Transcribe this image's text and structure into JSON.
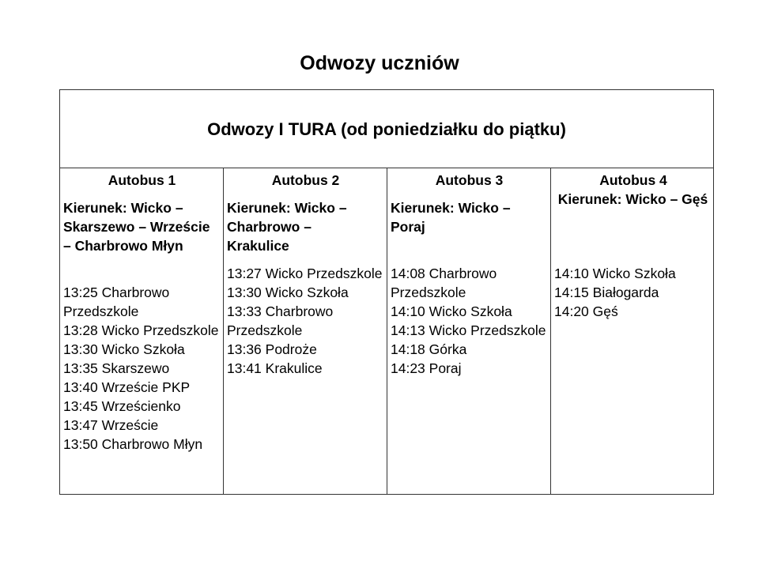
{
  "title": "Odwozy uczniów",
  "table": {
    "header": "Odwozy I TURA (od poniedziałku do piątku)",
    "buses": [
      {
        "name": "Autobus 1",
        "direction": "Kierunek: Wicko – Skarszewo – Wrzeście – Charbrowo Młyn",
        "stops": [
          "13:25 Charbrowo Przedszkole",
          "13:28 Wicko Przedszkole",
          "13:30 Wicko Szkoła",
          "13:35 Skarszewo",
          "13:40 Wrzeście PKP",
          "13:45 Wrześcienko",
          "13:47 Wrzeście",
          "13:50 Charbrowo Młyn"
        ]
      },
      {
        "name": "Autobus 2",
        "direction": "Kierunek: Wicko – Charbrowo – Krakulice",
        "stops": [
          "13:27 Wicko Przedszkole",
          "13:30 Wicko Szkoła",
          "13:33 Charbrowo Przedszkole",
          "13:36 Podroże",
          "13:41 Krakulice"
        ]
      },
      {
        "name": "Autobus 3",
        "direction": "Kierunek: Wicko – Poraj",
        "stops": [
          "14:08 Charbrowo Przedszkole",
          "14:10 Wicko Szkoła",
          "14:13 Wicko Przedszkole",
          "14:18 Górka",
          "14:23 Poraj"
        ]
      },
      {
        "name": "Autobus 4",
        "direction": "Kierunek: Wicko – Gęś",
        "stops": [
          "14:10 Wicko Szkoła",
          "14:15 Białogarda",
          "14:20 Gęś"
        ]
      }
    ]
  }
}
